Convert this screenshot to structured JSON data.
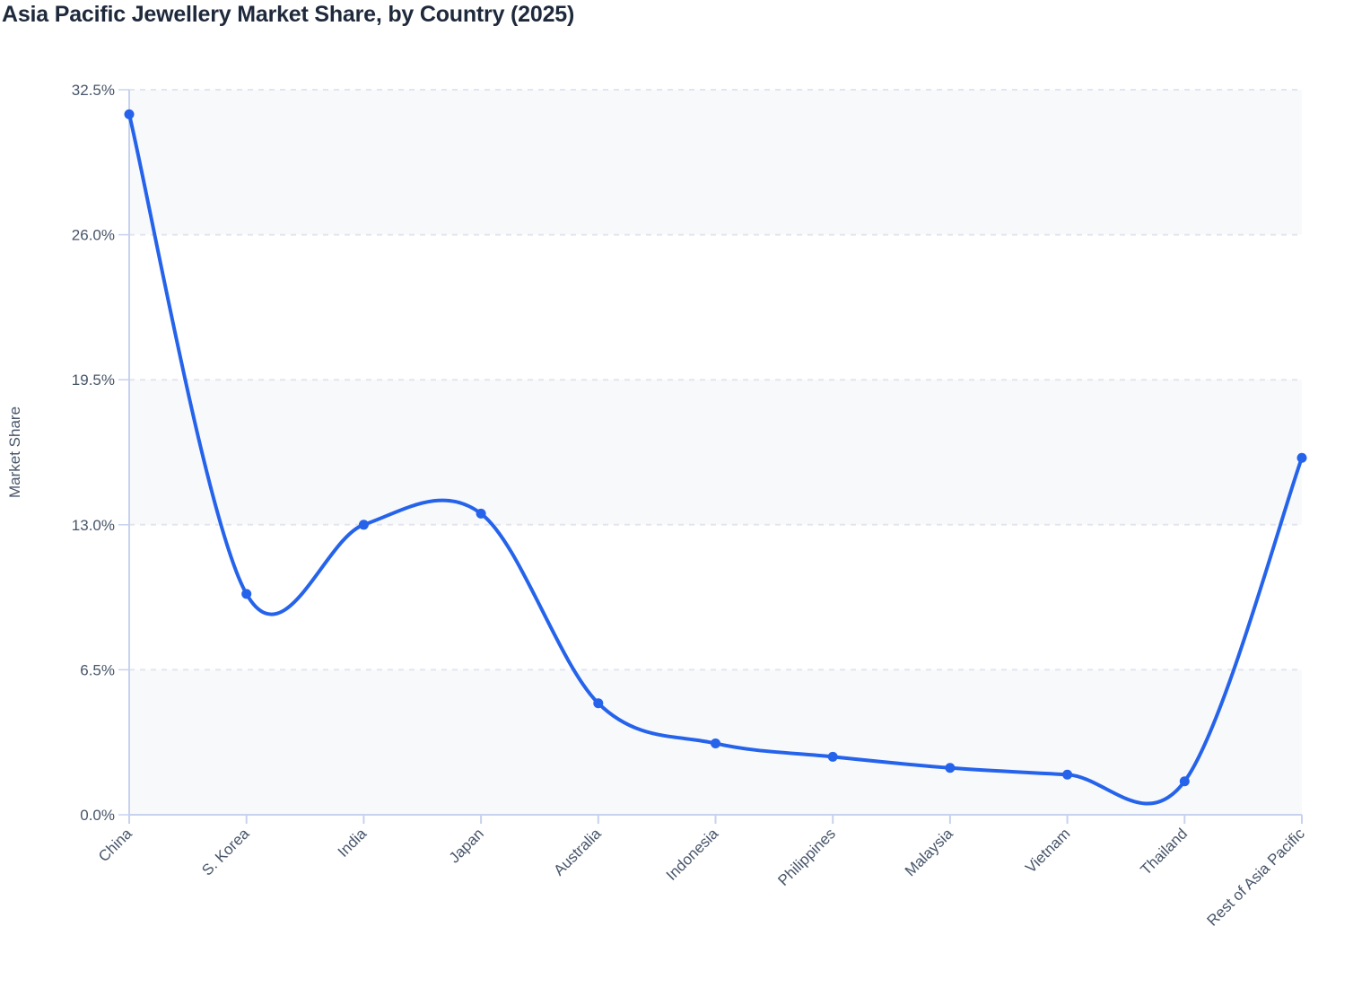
{
  "title": "Asia Pacific Jewellery Market Share, by Country (2025)",
  "colors": {
    "line": "#2563eb",
    "axis": "#c7d2ee",
    "grid": "#e2e5ee",
    "band": "#f8f9fb",
    "text": "#475569",
    "title": "#1e293b"
  },
  "chart_data": {
    "type": "line",
    "title": "Asia Pacific Jewellery Market Share, by Country (2025)",
    "xlabel": "",
    "ylabel": "Market Share",
    "categories": [
      "China",
      "S. Korea",
      "India",
      "Japan",
      "Australia",
      "Indonesia",
      "Philippines",
      "Malaysia",
      "Vietnam",
      "Thailand",
      "Rest of Asia Pacific"
    ],
    "series": [
      {
        "name": "Market Share",
        "values": [
          31.4,
          9.9,
          13.0,
          13.5,
          5.0,
          3.2,
          2.6,
          2.1,
          1.8,
          1.5,
          16.0
        ]
      }
    ],
    "ylim": [
      0,
      32.5
    ],
    "yticks": [
      0.0,
      6.5,
      13.0,
      19.5,
      26.0,
      32.5
    ],
    "ytick_labels": [
      "0.0%",
      "6.5%",
      "13.0%",
      "19.5%",
      "26.0%",
      "32.5%"
    ],
    "grid": true,
    "smooth": true,
    "legend": "none"
  }
}
